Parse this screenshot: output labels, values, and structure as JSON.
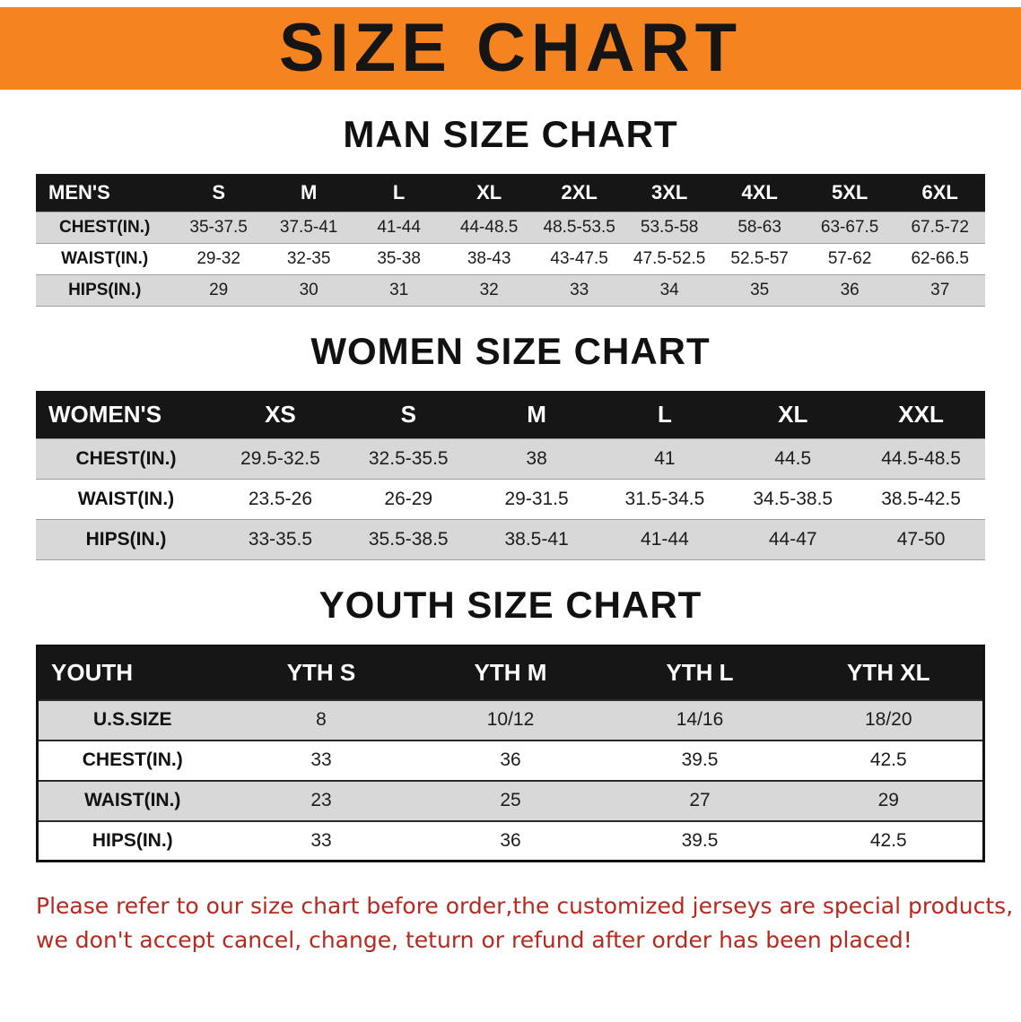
{
  "banner": {
    "title": "SIZE CHART"
  },
  "colors": {
    "banner_orange": "#f5831f",
    "table_header_black": "#161616",
    "row_gray": "#d8d8d8",
    "disclaimer_red": "#b5291e"
  },
  "sections": [
    {
      "heading": "MAN SIZE CHART",
      "header_label": "MEN'S",
      "columns": [
        "S",
        "M",
        "L",
        "XL",
        "2XL",
        "3XL",
        "4XL",
        "5XL",
        "6XL"
      ],
      "rows": [
        {
          "label": "CHEST(IN.)",
          "values": [
            "35-37.5",
            "37.5-41",
            "41-44",
            "44-48.5",
            "48.5-53.5",
            "53.5-58",
            "58-63",
            "63-67.5",
            "67.5-72"
          ]
        },
        {
          "label": "WAIST(IN.)",
          "values": [
            "29-32",
            "32-35",
            "35-38",
            "38-43",
            "43-47.5",
            "47.5-52.5",
            "52.5-57",
            "57-62",
            "62-66.5"
          ]
        },
        {
          "label": "HIPS(IN.)",
          "values": [
            "29",
            "30",
            "31",
            "32",
            "33",
            "34",
            "35",
            "36",
            "37"
          ]
        }
      ]
    },
    {
      "heading": "WOMEN SIZE CHART",
      "header_label": "WOMEN'S",
      "columns": [
        "XS",
        "S",
        "M",
        "L",
        "XL",
        "XXL"
      ],
      "rows": [
        {
          "label": "CHEST(IN.)",
          "values": [
            "29.5-32.5",
            "32.5-35.5",
            "38",
            "41",
            "44.5",
            "44.5-48.5"
          ]
        },
        {
          "label": "WAIST(IN.)",
          "values": [
            "23.5-26",
            "26-29",
            "29-31.5",
            "31.5-34.5",
            "34.5-38.5",
            "38.5-42.5"
          ]
        },
        {
          "label": "HIPS(IN.)",
          "values": [
            "33-35.5",
            "35.5-38.5",
            "38.5-41",
            "41-44",
            "44-47",
            "47-50"
          ]
        }
      ]
    },
    {
      "heading": "YOUTH SIZE CHART",
      "header_label": "YOUTH",
      "columns": [
        "YTH S",
        "YTH M",
        "YTH L",
        "YTH XL"
      ],
      "rows": [
        {
          "label": "U.S.SIZE",
          "values": [
            "8",
            "10/12",
            "14/16",
            "18/20"
          ]
        },
        {
          "label": "CHEST(IN.)",
          "values": [
            "33",
            "36",
            "39.5",
            "42.5"
          ]
        },
        {
          "label": "WAIST(IN.)",
          "values": [
            "23",
            "25",
            "27",
            "29"
          ]
        },
        {
          "label": "HIPS(IN.)",
          "values": [
            "33",
            "36",
            "39.5",
            "42.5"
          ]
        }
      ]
    }
  ],
  "disclaimer": {
    "line1": "Please refer to our size chart before order,the customized jerseys are special products,",
    "line2": "we don't accept cancel, change, teturn or refund after order has been placed!"
  }
}
